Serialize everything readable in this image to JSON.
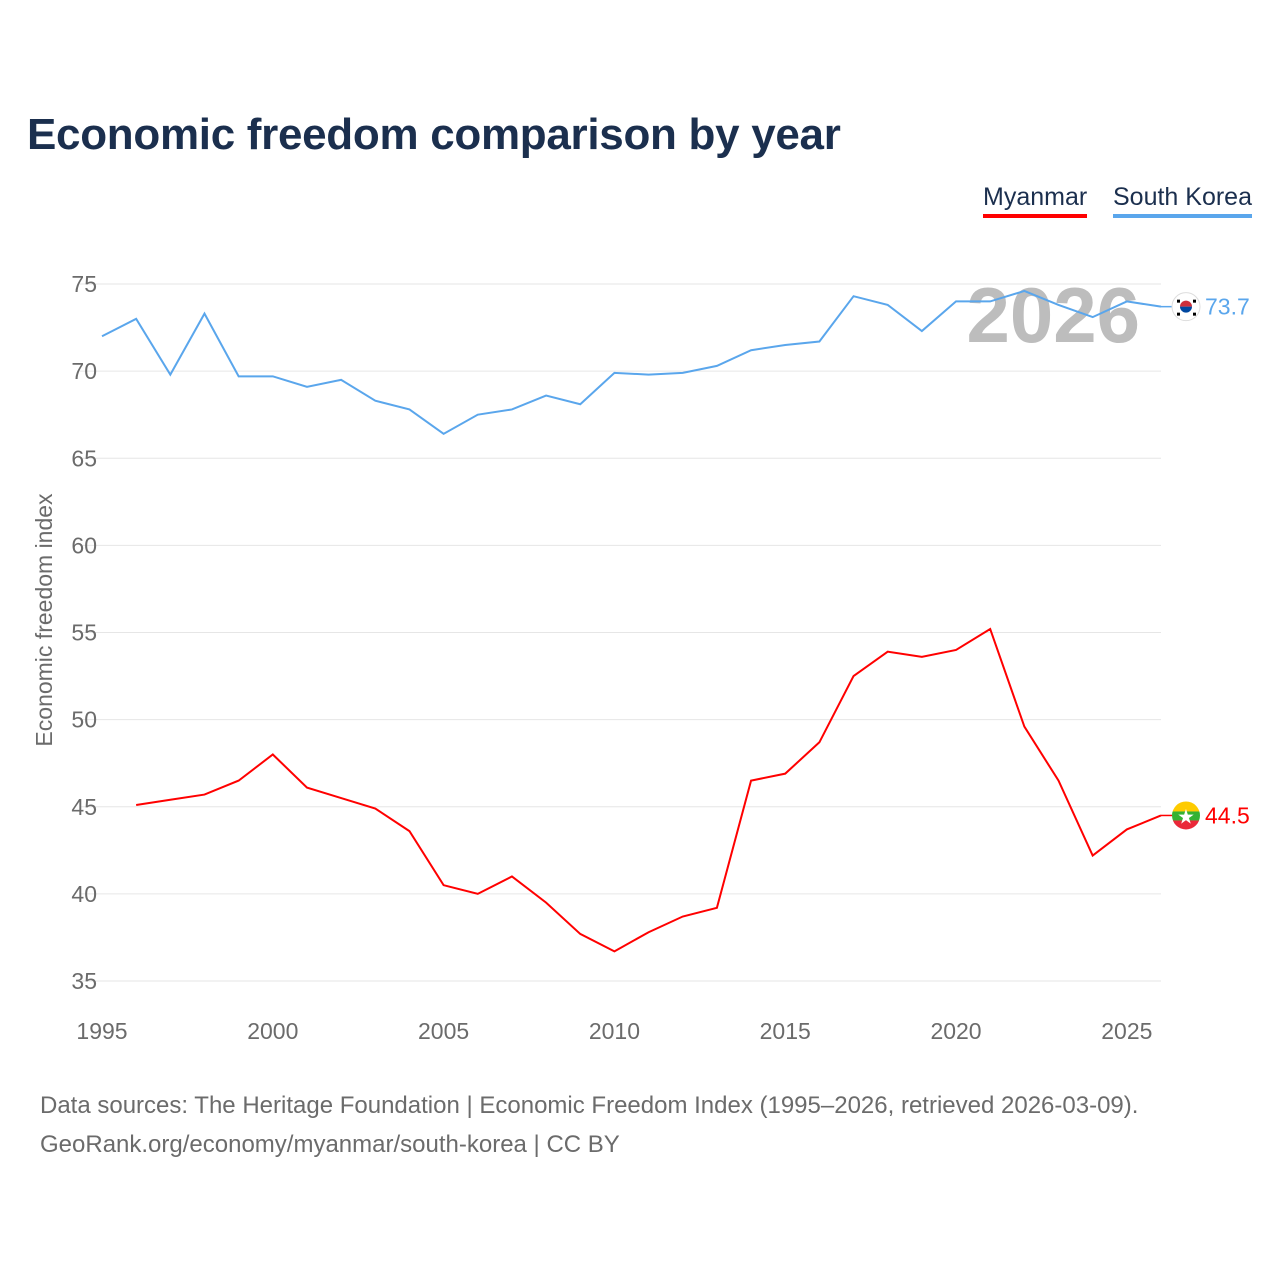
{
  "title": "Economic freedom comparison by year",
  "legend": [
    {
      "label": "Myanmar",
      "color": "#ff0000"
    },
    {
      "label": "South Korea",
      "color": "#5aa6ec"
    }
  ],
  "watermark_year": "2026",
  "footer": {
    "line1": "Data sources: The Heritage Foundation | Economic Freedom Index (1995–2026, retrieved 2026-03-09).",
    "line2": "GeoRank.org/economy/myanmar/south-korea | CC BY"
  },
  "chart_data": {
    "type": "line",
    "title": "Economic freedom comparison by year",
    "xlabel": "",
    "ylabel": "Economic freedom index",
    "xlim": [
      1995,
      2026
    ],
    "ylim": [
      35,
      75
    ],
    "xticks": [
      "1995",
      "2000",
      "2005",
      "2010",
      "2015",
      "2020",
      "2025"
    ],
    "yticks": [
      "35",
      "40",
      "45",
      "50",
      "55",
      "60",
      "65",
      "70",
      "75"
    ],
    "grid": true,
    "legend_position": "top-right",
    "series": [
      {
        "name": "Myanmar",
        "color": "#ff0000",
        "end_label": "44.5",
        "flag": "myanmar-flag",
        "x": [
          1996,
          1997,
          1998,
          1999,
          2000,
          2001,
          2002,
          2003,
          2004,
          2005,
          2006,
          2007,
          2008,
          2009,
          2010,
          2011,
          2012,
          2013,
          2014,
          2015,
          2016,
          2017,
          2018,
          2019,
          2020,
          2021,
          2022,
          2023,
          2024,
          2025,
          2026
        ],
        "values": [
          45.1,
          45.4,
          45.7,
          46.5,
          48.0,
          46.1,
          45.5,
          44.9,
          43.6,
          40.5,
          40.0,
          41.0,
          39.5,
          37.7,
          36.7,
          37.8,
          38.7,
          39.2,
          46.5,
          46.9,
          48.7,
          52.5,
          53.9,
          53.6,
          54.0,
          55.2,
          49.6,
          46.5,
          42.2,
          43.7,
          44.5
        ]
      },
      {
        "name": "South Korea",
        "color": "#5aa6ec",
        "end_label": "73.7",
        "flag": "south-korea-flag",
        "x": [
          1995,
          1996,
          1997,
          1998,
          1999,
          2000,
          2001,
          2002,
          2003,
          2004,
          2005,
          2006,
          2007,
          2008,
          2009,
          2010,
          2011,
          2012,
          2013,
          2014,
          2015,
          2016,
          2017,
          2018,
          2019,
          2020,
          2021,
          2022,
          2023,
          2024,
          2025,
          2026
        ],
        "values": [
          72.0,
          73.0,
          69.8,
          73.3,
          69.7,
          69.7,
          69.1,
          69.5,
          68.3,
          67.8,
          66.4,
          67.5,
          67.8,
          68.6,
          68.1,
          69.9,
          69.8,
          69.9,
          70.3,
          71.2,
          71.5,
          71.7,
          74.3,
          73.8,
          72.3,
          74.0,
          74.0,
          74.6,
          73.8,
          73.1,
          74.0,
          73.7
        ]
      }
    ]
  }
}
